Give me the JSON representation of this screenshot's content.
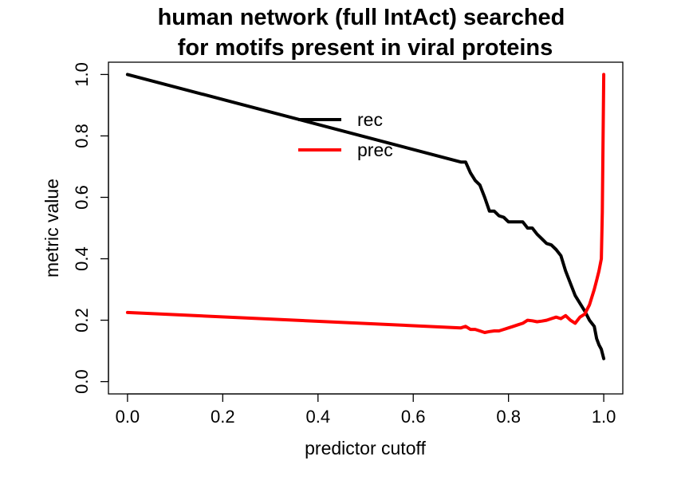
{
  "chart_data": {
    "type": "line",
    "title": "human network (full IntAct) searched",
    "subtitle": "for motifs present in viral proteins",
    "xlabel": "predictor cutoff",
    "ylabel": "metric value",
    "xlim": [
      -0.04,
      1.04
    ],
    "ylim": [
      -0.04,
      1.04
    ],
    "x_ticks": [
      0.0,
      0.2,
      0.4,
      0.6,
      0.8,
      1.0
    ],
    "x_tick_labels": [
      "0.0",
      "0.2",
      "0.4",
      "0.6",
      "0.8",
      "1.0"
    ],
    "y_ticks": [
      0.0,
      0.2,
      0.4,
      0.6,
      0.8,
      1.0
    ],
    "y_tick_labels": [
      "0.0",
      "0.2",
      "0.4",
      "0.6",
      "0.8",
      "1.0"
    ],
    "grid": false,
    "legend_position": "top-center",
    "series": [
      {
        "name": "rec",
        "color": "#000000",
        "points": [
          [
            0.0,
            1.0
          ],
          [
            0.7,
            0.715
          ],
          [
            0.71,
            0.715
          ],
          [
            0.72,
            0.68
          ],
          [
            0.73,
            0.655
          ],
          [
            0.74,
            0.64
          ],
          [
            0.75,
            0.6
          ],
          [
            0.76,
            0.555
          ],
          [
            0.77,
            0.555
          ],
          [
            0.78,
            0.54
          ],
          [
            0.79,
            0.535
          ],
          [
            0.8,
            0.52
          ],
          [
            0.81,
            0.52
          ],
          [
            0.82,
            0.52
          ],
          [
            0.83,
            0.52
          ],
          [
            0.84,
            0.5
          ],
          [
            0.85,
            0.5
          ],
          [
            0.86,
            0.48
          ],
          [
            0.87,
            0.465
          ],
          [
            0.88,
            0.45
          ],
          [
            0.89,
            0.445
          ],
          [
            0.9,
            0.43
          ],
          [
            0.91,
            0.41
          ],
          [
            0.92,
            0.36
          ],
          [
            0.93,
            0.32
          ],
          [
            0.94,
            0.28
          ],
          [
            0.95,
            0.255
          ],
          [
            0.96,
            0.23
          ],
          [
            0.97,
            0.2
          ],
          [
            0.98,
            0.18
          ],
          [
            0.985,
            0.14
          ],
          [
            0.99,
            0.12
          ],
          [
            0.995,
            0.105
          ],
          [
            1.0,
            0.075
          ]
        ]
      },
      {
        "name": "prec",
        "color": "#ff0000",
        "points": [
          [
            0.0,
            0.225
          ],
          [
            0.7,
            0.175
          ],
          [
            0.71,
            0.18
          ],
          [
            0.72,
            0.17
          ],
          [
            0.73,
            0.17
          ],
          [
            0.74,
            0.165
          ],
          [
            0.75,
            0.16
          ],
          [
            0.76,
            0.163
          ],
          [
            0.77,
            0.165
          ],
          [
            0.78,
            0.165
          ],
          [
            0.79,
            0.17
          ],
          [
            0.8,
            0.175
          ],
          [
            0.81,
            0.18
          ],
          [
            0.82,
            0.185
          ],
          [
            0.83,
            0.19
          ],
          [
            0.84,
            0.2
          ],
          [
            0.85,
            0.198
          ],
          [
            0.86,
            0.195
          ],
          [
            0.87,
            0.197
          ],
          [
            0.88,
            0.2
          ],
          [
            0.89,
            0.205
          ],
          [
            0.9,
            0.21
          ],
          [
            0.91,
            0.205
          ],
          [
            0.92,
            0.215
          ],
          [
            0.93,
            0.2
          ],
          [
            0.94,
            0.19
          ],
          [
            0.95,
            0.21
          ],
          [
            0.96,
            0.22
          ],
          [
            0.97,
            0.25
          ],
          [
            0.98,
            0.3
          ],
          [
            0.985,
            0.33
          ],
          [
            0.99,
            0.36
          ],
          [
            0.995,
            0.4
          ],
          [
            0.997,
            0.55
          ],
          [
            1.0,
            1.0
          ]
        ]
      }
    ]
  }
}
